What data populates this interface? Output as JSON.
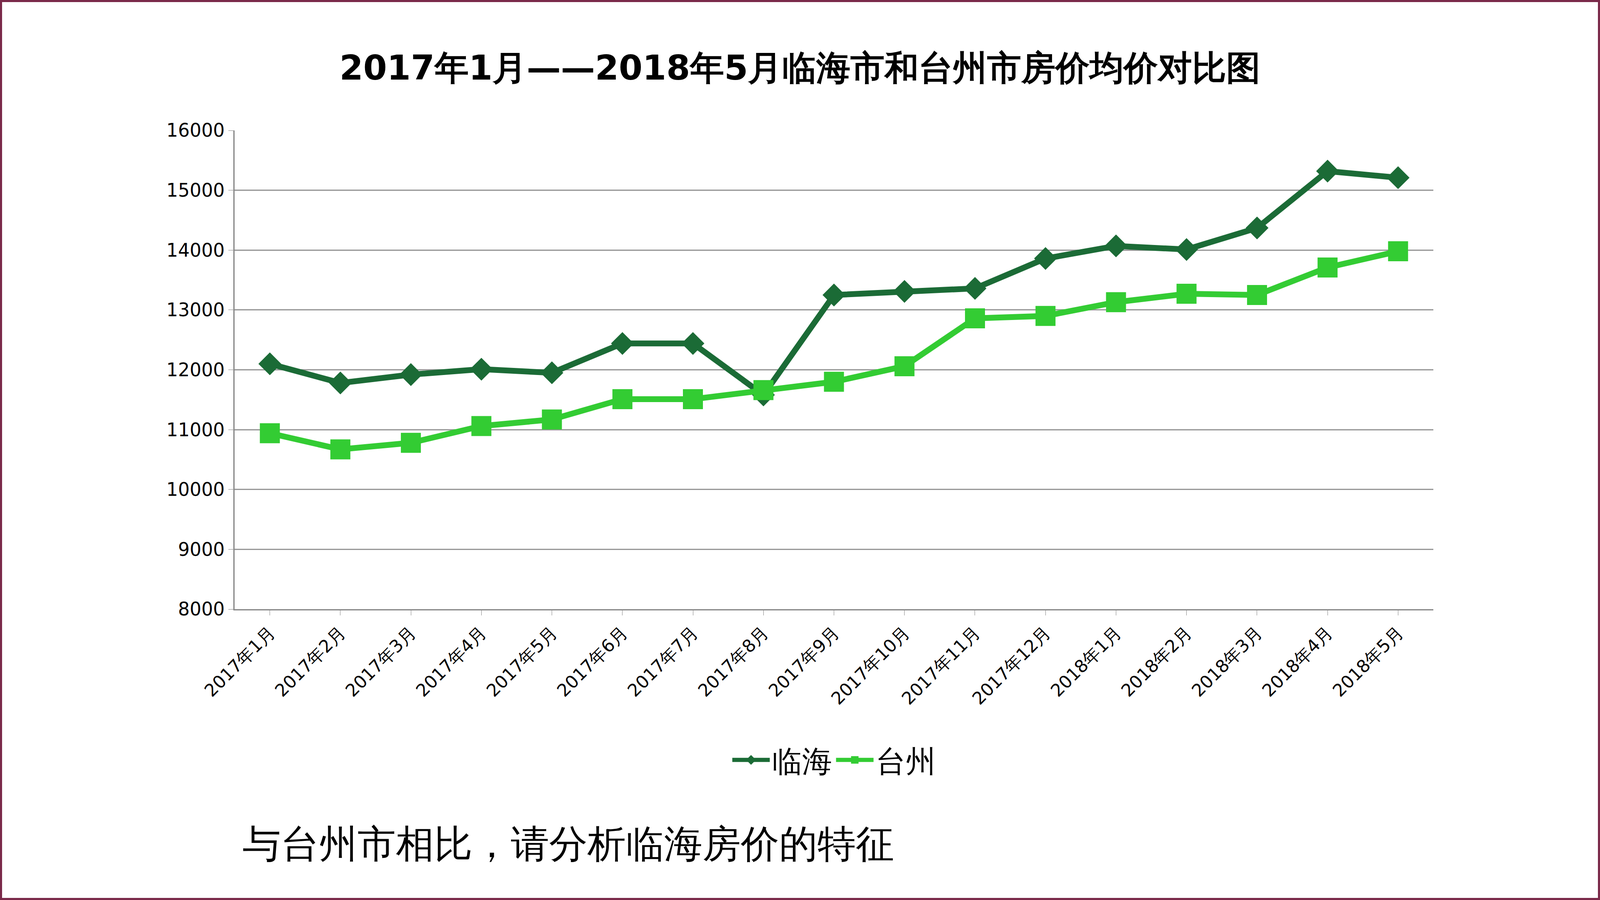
{
  "chart_data": {
    "type": "line",
    "title": "2017年1月——2018年5月临海市和台州市房价均价对比图",
    "categories": [
      "2017年1月",
      "2017年2月",
      "2017年3月",
      "2017年4月",
      "2017年5月",
      "2017年6月",
      "2017年7月",
      "2017年8月",
      "2017年9月",
      "2017年10月",
      "2017年11月",
      "2017年12月",
      "2018年1月",
      "2018年2月",
      "2018年3月",
      "2018年4月",
      "2018年5月"
    ],
    "series": [
      {
        "name": "临海",
        "color": "#1b6b36",
        "marker": "diamond",
        "values": [
          12100,
          11780,
          11920,
          12010,
          11950,
          12440,
          12440,
          11580,
          13250,
          13310,
          13360,
          13860,
          14070,
          14010,
          14370,
          15320,
          15210
        ]
      },
      {
        "name": "台州",
        "color": "#33cc33",
        "marker": "square",
        "values": [
          10940,
          10670,
          10780,
          11060,
          11170,
          11510,
          11510,
          11660,
          11800,
          12060,
          12860,
          12900,
          13130,
          13270,
          13250,
          13710,
          13980
        ]
      }
    ],
    "ylim": [
      8000,
      16000
    ],
    "yticks": [
      8000,
      9000,
      10000,
      11000,
      12000,
      13000,
      14000,
      15000,
      16000
    ],
    "grid": true,
    "legend": "bottom",
    "annotations": [
      "与台州市相比，请分析临海房价的特征"
    ]
  }
}
